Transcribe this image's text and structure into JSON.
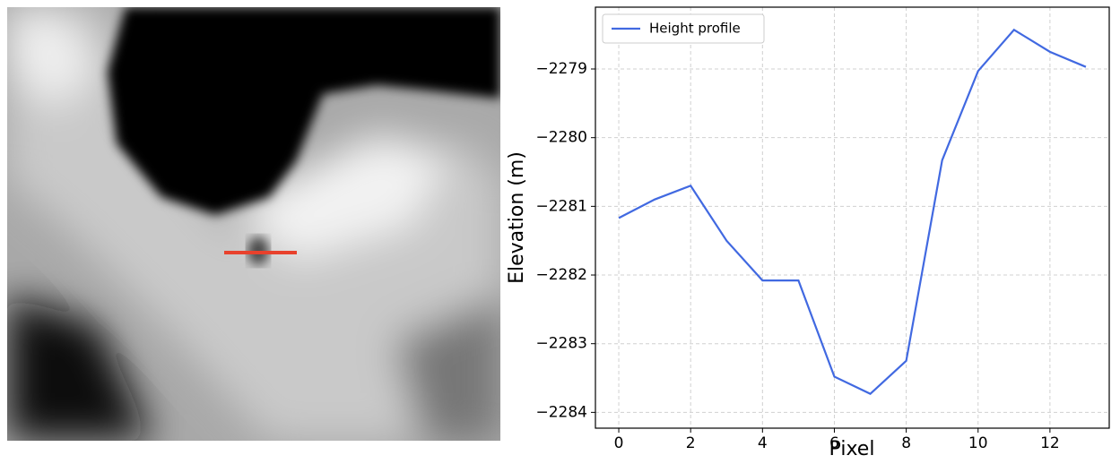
{
  "chart_data": {
    "type": "line",
    "xlabel": "Pixel",
    "ylabel": "Elevation (m)",
    "x": [
      0,
      1,
      2,
      3,
      4,
      5,
      6,
      7,
      8,
      9,
      10,
      11,
      12,
      13
    ],
    "series": [
      {
        "name": "Height profile",
        "color": "#4169e1",
        "values": [
          -2281.17,
          -2280.9,
          -2280.7,
          -2281.5,
          -2282.08,
          -2282.08,
          -2283.48,
          -2283.73,
          -2283.25,
          -2280.33,
          -2279.03,
          -2278.43,
          -2278.75,
          -2278.97
        ]
      }
    ],
    "xlim": [
      -0.65,
      13.65
    ],
    "xticks": [
      0,
      2,
      4,
      6,
      8,
      10,
      12
    ],
    "ylim": [
      -2284.23,
      -2278.1
    ],
    "yticks": [
      {
        "value": -2284,
        "label": "−2284"
      },
      {
        "value": -2283,
        "label": "−2283"
      },
      {
        "value": -2282,
        "label": "−2282"
      },
      {
        "value": -2281,
        "label": "−2281"
      },
      {
        "value": -2280,
        "label": "−2280"
      },
      {
        "value": -2279,
        "label": "−2279"
      }
    ],
    "grid": true,
    "legend": "upper-left"
  }
}
